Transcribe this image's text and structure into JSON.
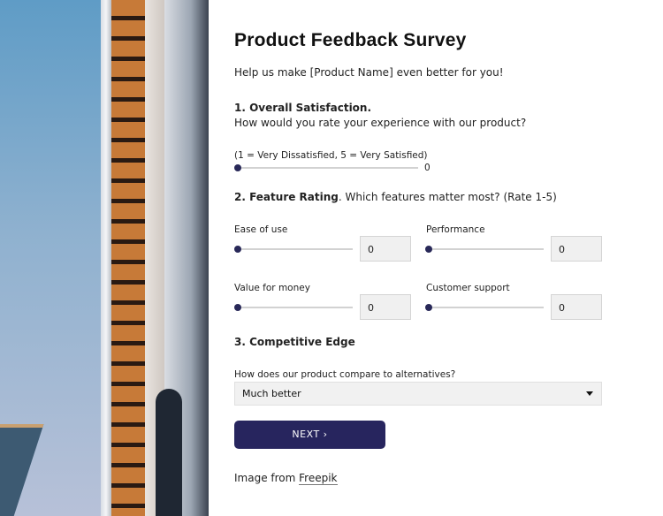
{
  "title": "Product Feedback Survey",
  "intro": "Help us make [Product Name] even better for you!",
  "q1": {
    "heading": "1. Overall Satisfaction.",
    "question": "How would you rate your experience with our product?",
    "scale": "(1 = Very Dissatisfied, 5 = Very Satisfied)",
    "value": "0"
  },
  "q2": {
    "heading": "2. Feature Rating",
    "question": ". Which features matter most? (Rate 1-5)",
    "items": [
      {
        "label": "Ease of use",
        "value": "0"
      },
      {
        "label": "Performance",
        "value": "0"
      },
      {
        "label": "Value for money",
        "value": "0"
      },
      {
        "label": "Customer support",
        "value": "0"
      }
    ]
  },
  "q3": {
    "heading": "3. Competitive Edge",
    "question": "How does our product compare to alternatives?",
    "selected": "Much better"
  },
  "next_label": "NEXT",
  "credit": {
    "prefix": "Image from ",
    "link": "Freepik"
  },
  "colors": {
    "accent": "#27255e"
  }
}
